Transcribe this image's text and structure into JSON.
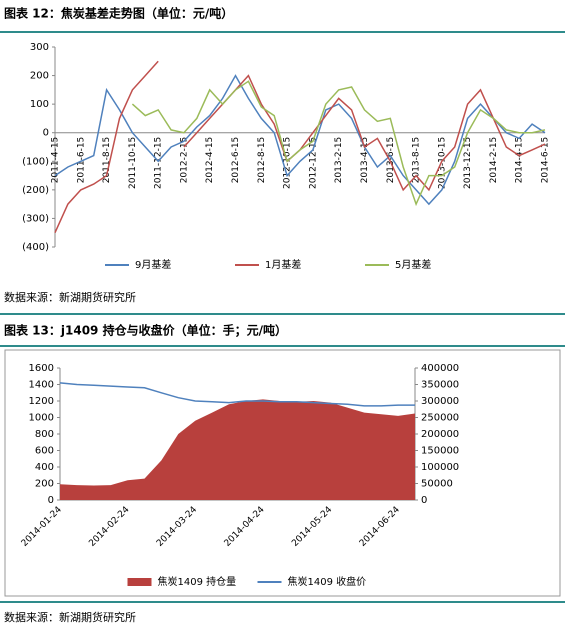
{
  "figures": [
    {
      "caption": "图表 12：焦炭基差走势图（单位：元/吨）",
      "source": "数据来源：新湖期货研究所"
    },
    {
      "caption": "图表 13：j1409 持仓与收盘价（单位：手；元/吨）",
      "source": "数据来源：新湖期货研究所"
    }
  ],
  "chart_data": [
    {
      "type": "line",
      "categories": [
        "2011-4-15",
        null,
        "2011-6-15",
        null,
        "2011-8-15",
        null,
        "2011-10-15",
        null,
        "2011-12-15",
        null,
        "2012-2-15",
        null,
        "2012-4-15",
        null,
        "2012-6-15",
        null,
        "2012-8-15",
        null,
        "2012-10-15",
        null,
        "2012-12-15",
        null,
        "2013-2-15",
        null,
        "2013-4-15",
        null,
        "2013-6-15",
        null,
        "2013-8-15",
        null,
        "2013-10-15",
        null,
        "2013-12-15",
        null,
        "2014-2-15",
        null,
        "2014-4-15",
        null,
        "2014-6-15"
      ],
      "series": [
        {
          "name": "9月基差",
          "color": "#4f81bd",
          "values": [
            -150,
            -120,
            -100,
            -80,
            150,
            80,
            0,
            -50,
            -100,
            -50,
            -30,
            20,
            60,
            120,
            200,
            120,
            50,
            0,
            -150,
            -100,
            -60,
            80,
            100,
            50,
            -50,
            -120,
            -80,
            -150,
            -200,
            -250,
            -200,
            -100,
            50,
            100,
            50,
            0,
            -20,
            30,
            0
          ]
        },
        {
          "name": "1月基差",
          "color": "#c0504d",
          "values": [
            -350,
            -250,
            -200,
            -180,
            -150,
            50,
            150,
            200,
            250,
            null,
            -50,
            0,
            50,
            100,
            150,
            200,
            100,
            30,
            -100,
            -60,
            0,
            60,
            120,
            80,
            -50,
            -20,
            -100,
            -200,
            -150,
            -200,
            -100,
            -50,
            100,
            150,
            50,
            -50,
            -80,
            -60,
            -40
          ]
        },
        {
          "name": "5月基差",
          "color": "#9bbb59",
          "values": [
            null,
            null,
            null,
            null,
            null,
            null,
            100,
            60,
            80,
            10,
            0,
            50,
            150,
            100,
            150,
            180,
            90,
            60,
            -100,
            -60,
            -30,
            100,
            150,
            160,
            80,
            40,
            50,
            -120,
            -250,
            -150,
            -150,
            -120,
            0,
            80,
            50,
            10,
            0,
            0,
            10
          ]
        }
      ],
      "ylim": [
        -400,
        300
      ],
      "yticks": [
        {
          "value": -400,
          "label": "(400)"
        },
        {
          "value": -300,
          "label": "(300)"
        },
        {
          "value": -200,
          "label": "(200)"
        },
        {
          "value": -100,
          "label": "(100)"
        },
        0,
        100,
        200,
        300
      ],
      "grid": false,
      "legend": "bottom"
    },
    {
      "type": "combo",
      "categories": [
        "2014-01-24",
        null,
        null,
        null,
        "2014-02-24",
        null,
        null,
        null,
        "2014-03-24",
        null,
        null,
        null,
        "2014-04-24",
        null,
        null,
        null,
        "2014-05-24",
        null,
        null,
        null,
        "2014-06-24",
        null
      ],
      "series": [
        {
          "name": "焦炭1409 持仓量",
          "type": "area",
          "axis": "y2",
          "color": "#b8403d",
          "values": [
            48000,
            45000,
            44000,
            45000,
            60000,
            65000,
            120000,
            200000,
            240000,
            265000,
            290000,
            300000,
            305000,
            300000,
            298000,
            300000,
            295000,
            280000,
            265000,
            260000,
            255000,
            262000
          ]
        },
        {
          "name": "焦炭1409 收盘价",
          "type": "line",
          "color": "#4f81bd",
          "values": [
            1420,
            1400,
            1390,
            1380,
            1370,
            1360,
            1300,
            1240,
            1200,
            1190,
            1180,
            1200,
            1200,
            1190,
            1190,
            1180,
            1170,
            1160,
            1140,
            1140,
            1150,
            1150
          ]
        }
      ],
      "ylim": [
        0,
        1600
      ],
      "yticks": [
        0,
        200,
        400,
        600,
        800,
        1000,
        1200,
        1400,
        1600
      ],
      "y2lim": [
        0,
        400000
      ],
      "y2ticks": [
        0,
        50000,
        100000,
        150000,
        200000,
        250000,
        300000,
        350000,
        400000
      ],
      "grid": false,
      "legend": "bottom"
    }
  ]
}
